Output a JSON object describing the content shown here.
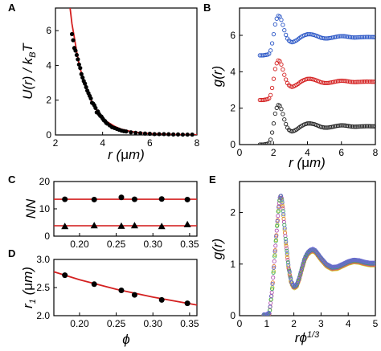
{
  "chart_data": [
    {
      "panel": "A",
      "type": "scatter",
      "xlabel_parts": [
        "r (",
        "μ",
        "m)"
      ],
      "ylabel_parts": [
        "U(r) / k",
        "B",
        "T"
      ],
      "xlim": [
        2,
        8
      ],
      "ylim": [
        0,
        7.3
      ],
      "xticks": [
        2,
        4,
        6,
        8
      ],
      "yticks": [
        0,
        2,
        4,
        6
      ],
      "marker_color": "#000000",
      "fit_color": "#d42020",
      "points": [
        [
          2.7,
          5.8
        ],
        [
          2.75,
          5.45
        ],
        [
          2.8,
          5.0
        ],
        [
          2.85,
          4.85
        ],
        [
          2.9,
          4.6
        ],
        [
          2.95,
          4.35
        ],
        [
          3.0,
          4.05
        ],
        [
          3.05,
          3.85
        ],
        [
          3.1,
          3.5
        ],
        [
          3.15,
          3.3
        ],
        [
          3.2,
          3.1
        ],
        [
          3.25,
          2.95
        ],
        [
          3.3,
          2.75
        ],
        [
          3.35,
          2.55
        ],
        [
          3.4,
          2.4
        ],
        [
          3.45,
          2.25
        ],
        [
          3.5,
          2.1
        ],
        [
          3.55,
          1.85
        ],
        [
          3.6,
          1.8
        ],
        [
          3.65,
          1.7
        ],
        [
          3.7,
          1.55
        ],
        [
          3.75,
          1.3
        ],
        [
          3.8,
          1.35
        ],
        [
          3.85,
          1.2
        ],
        [
          3.9,
          1.1
        ],
        [
          3.95,
          1.05
        ],
        [
          4.0,
          0.95
        ],
        [
          4.05,
          0.85
        ],
        [
          4.1,
          0.8
        ],
        [
          4.15,
          0.7
        ],
        [
          4.2,
          0.65
        ],
        [
          4.3,
          0.55
        ],
        [
          4.4,
          0.45
        ],
        [
          4.5,
          0.4
        ],
        [
          4.6,
          0.35
        ],
        [
          4.7,
          0.3
        ],
        [
          4.8,
          0.25
        ],
        [
          4.9,
          0.22
        ],
        [
          5.0,
          0.2
        ],
        [
          5.2,
          0.15
        ],
        [
          5.4,
          0.12
        ],
        [
          5.6,
          0.1
        ],
        [
          5.8,
          0.08
        ],
        [
          6.0,
          0.07
        ],
        [
          6.2,
          0.05
        ],
        [
          6.4,
          0.05
        ],
        [
          6.6,
          0.05
        ],
        [
          6.8,
          0.04
        ],
        [
          7.0,
          0.03
        ],
        [
          7.2,
          0.03
        ],
        [
          7.4,
          0.02
        ],
        [
          7.6,
          0.02
        ],
        [
          7.8,
          0.02
        ]
      ],
      "fit": [
        [
          2.62,
          7.3
        ],
        [
          2.7,
          6.4
        ],
        [
          2.8,
          5.6
        ],
        [
          2.9,
          4.8
        ],
        [
          3.0,
          4.1
        ],
        [
          3.2,
          3.05
        ],
        [
          3.4,
          2.3
        ],
        [
          3.6,
          1.75
        ],
        [
          3.8,
          1.32
        ],
        [
          4.0,
          1.0
        ],
        [
          4.2,
          0.75
        ],
        [
          4.5,
          0.5
        ],
        [
          4.8,
          0.33
        ],
        [
          5.2,
          0.2
        ],
        [
          5.6,
          0.12
        ],
        [
          6.0,
          0.08
        ],
        [
          7.0,
          0.03
        ],
        [
          8.0,
          0.01
        ]
      ]
    },
    {
      "panel": "B",
      "type": "scatter",
      "xlabel_parts": [
        "r (",
        "μ",
        "m)"
      ],
      "ylabel": "g(r)",
      "xlim": [
        0,
        8
      ],
      "ylim": [
        0,
        7.5
      ],
      "xticks": [
        0,
        2,
        4,
        6,
        8
      ],
      "yticks": [
        0,
        2,
        4,
        6
      ],
      "series": [
        {
          "color": "#2a56c6",
          "offset": 4.9
        },
        {
          "color": "#d42020",
          "offset": 2.45
        },
        {
          "color": "#222222",
          "offset": 0
        }
      ],
      "g_curve": [
        [
          1.4,
          0
        ],
        [
          1.7,
          0.05
        ],
        [
          1.8,
          0.15
        ],
        [
          1.9,
          0.55
        ],
        [
          2.0,
          1.1
        ],
        [
          2.1,
          1.7
        ],
        [
          2.2,
          2.05
        ],
        [
          2.3,
          2.2
        ],
        [
          2.4,
          2.1
        ],
        [
          2.5,
          1.85
        ],
        [
          2.6,
          1.5
        ],
        [
          2.7,
          1.2
        ],
        [
          2.8,
          0.95
        ],
        [
          2.9,
          0.82
        ],
        [
          3.0,
          0.75
        ],
        [
          3.1,
          0.72
        ],
        [
          3.2,
          0.75
        ],
        [
          3.4,
          0.85
        ],
        [
          3.6,
          1.0
        ],
        [
          3.8,
          1.1
        ],
        [
          4.0,
          1.16
        ],
        [
          4.2,
          1.16
        ],
        [
          4.4,
          1.12
        ],
        [
          4.6,
          1.05
        ],
        [
          4.8,
          0.97
        ],
        [
          5.0,
          0.93
        ],
        [
          5.2,
          0.93
        ],
        [
          5.4,
          0.96
        ],
        [
          5.6,
          1.0
        ],
        [
          5.8,
          1.04
        ],
        [
          6.0,
          1.06
        ],
        [
          6.2,
          1.05
        ],
        [
          6.4,
          1.02
        ],
        [
          6.6,
          0.99
        ],
        [
          6.8,
          0.98
        ],
        [
          7.0,
          0.99
        ],
        [
          7.2,
          1.0
        ],
        [
          7.5,
          1.01
        ],
        [
          8.0,
          1.0
        ]
      ]
    },
    {
      "panel": "C",
      "type": "scatter",
      "ylabel": "NN",
      "xlim": [
        0.165,
        0.36
      ],
      "ylim": [
        0,
        20
      ],
      "xticks": [
        0.2,
        0.25,
        0.3,
        0.35
      ],
      "xtick_labels": [
        "0.20",
        "0.25",
        "0.30",
        "0.35"
      ],
      "yticks": [
        0,
        10,
        20
      ],
      "series": [
        {
          "marker": "circle",
          "x": [
            0.18,
            0.22,
            0.257,
            0.275,
            0.312,
            0.347
          ],
          "y": [
            13.5,
            13.4,
            14.2,
            13.5,
            13.6,
            13.4
          ],
          "fit": 13.5
        },
        {
          "marker": "triangle",
          "x": [
            0.18,
            0.22,
            0.257,
            0.275,
            0.312,
            0.347
          ],
          "y": [
            3.6,
            3.9,
            3.7,
            3.9,
            3.6,
            4.3
          ],
          "fit": 3.8
        }
      ],
      "fit_color": "#d42020"
    },
    {
      "panel": "D",
      "type": "line",
      "xlabel": "ϕ",
      "ylabel_parts": [
        "r",
        "1",
        " (",
        "μ",
        "m)"
      ],
      "xlim": [
        0.165,
        0.36
      ],
      "ylim": [
        2.0,
        3.0
      ],
      "xticks": [
        0.2,
        0.25,
        0.3,
        0.35
      ],
      "xtick_labels": [
        "0.20",
        "0.25",
        "0.30",
        "0.35"
      ],
      "yticks": [
        2.0,
        2.5,
        3.0
      ],
      "ytick_labels": [
        "2.0",
        "2.5",
        "3.0"
      ],
      "x": [
        0.18,
        0.22,
        0.257,
        0.275,
        0.312,
        0.347
      ],
      "y": [
        2.72,
        2.56,
        2.45,
        2.37,
        2.28,
        2.22
      ],
      "fit": [
        [
          0.165,
          2.78
        ],
        [
          0.2,
          2.64
        ],
        [
          0.25,
          2.47
        ],
        [
          0.3,
          2.33
        ],
        [
          0.36,
          2.19
        ]
      ],
      "fit_color": "#d42020"
    },
    {
      "panel": "E",
      "type": "scatter",
      "xlabel_parts": [
        "r",
        "ϕ",
        "1/3"
      ],
      "ylabel": "g(r)",
      "xlim": [
        0,
        5
      ],
      "ylim": [
        0,
        2.6
      ],
      "xticks": [
        0,
        1,
        2,
        3,
        4,
        5
      ],
      "yticks": [
        0,
        1,
        2
      ],
      "colors": [
        "#c8c830",
        "#e07a30",
        "#b050b0",
        "#3aa85a",
        "#6a6ad0"
      ],
      "g_curve": [
        [
          0.8,
          0
        ],
        [
          1.0,
          0
        ],
        [
          1.1,
          0.04
        ],
        [
          1.2,
          0.5
        ],
        [
          1.3,
          1.2
        ],
        [
          1.4,
          1.85
        ],
        [
          1.45,
          2.15
        ],
        [
          1.5,
          2.32
        ],
        [
          1.55,
          2.28
        ],
        [
          1.6,
          2.05
        ],
        [
          1.7,
          1.45
        ],
        [
          1.8,
          0.95
        ],
        [
          1.9,
          0.65
        ],
        [
          2.0,
          0.55
        ],
        [
          2.1,
          0.58
        ],
        [
          2.2,
          0.72
        ],
        [
          2.3,
          0.92
        ],
        [
          2.4,
          1.1
        ],
        [
          2.5,
          1.2
        ],
        [
          2.6,
          1.25
        ],
        [
          2.7,
          1.27
        ],
        [
          2.8,
          1.24
        ],
        [
          3.0,
          1.1
        ],
        [
          3.2,
          0.98
        ],
        [
          3.4,
          0.92
        ],
        [
          3.6,
          0.93
        ],
        [
          3.8,
          0.98
        ],
        [
          4.0,
          1.03
        ],
        [
          4.2,
          1.06
        ],
        [
          4.4,
          1.05
        ],
        [
          4.6,
          1.02
        ],
        [
          4.8,
          1.0
        ],
        [
          5.0,
          1.0
        ]
      ]
    }
  ]
}
